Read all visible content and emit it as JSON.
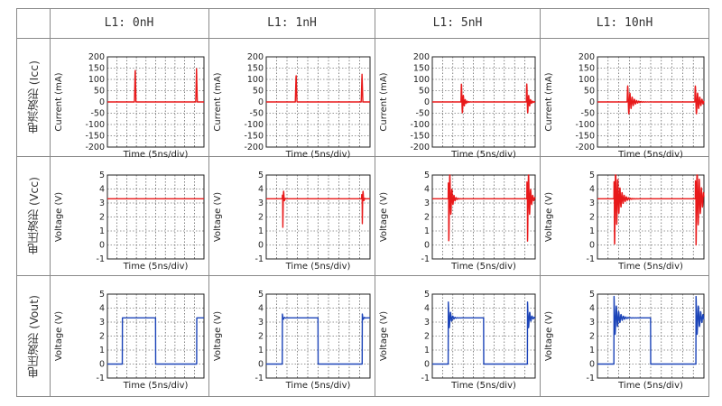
{
  "headers": [
    "L1: 0nH",
    "L1: 1nH",
    "L1: 5nH",
    "L1: 10nH"
  ],
  "row_labels": [
    "电流波形 (Icc)",
    "电压波形 (Vcc)",
    "电压波形 (Vout)"
  ],
  "colors": {
    "red": "#e8191a",
    "blue": "#1c44b8",
    "grid": "#333333"
  },
  "chart_data": [
    {
      "type": "line",
      "row": 0,
      "col": 0,
      "ylabel": "Current (mA)",
      "xlabel": "Time (5ns/div)",
      "ylim": [
        -200,
        200
      ],
      "yticks": [
        200,
        150,
        100,
        50,
        0,
        -50,
        -100,
        -150,
        -200
      ],
      "series": [
        {
          "kind": "icc",
          "peak": 150,
          "ring": 0,
          "color": "red"
        }
      ]
    },
    {
      "type": "line",
      "row": 0,
      "col": 1,
      "ylabel": "Current (mA)",
      "xlabel": "Time (5ns/div)",
      "ylim": [
        -200,
        200
      ],
      "yticks": [
        200,
        150,
        100,
        50,
        0,
        -50,
        -100,
        -150,
        -200
      ],
      "series": [
        {
          "kind": "icc",
          "peak": 125,
          "ring": 0,
          "color": "red"
        }
      ]
    },
    {
      "type": "line",
      "row": 0,
      "col": 2,
      "ylabel": "Current (mA)",
      "xlabel": "Time (5ns/div)",
      "ylim": [
        -200,
        200
      ],
      "yticks": [
        200,
        150,
        100,
        50,
        0,
        -50,
        -100,
        -150,
        -200
      ],
      "series": [
        {
          "kind": "icc",
          "peak": 85,
          "ring": 1,
          "color": "red"
        }
      ]
    },
    {
      "type": "line",
      "row": 0,
      "col": 3,
      "ylabel": "Current (mA)",
      "xlabel": "Time (5ns/div)",
      "ylim": [
        -200,
        200
      ],
      "yticks": [
        200,
        150,
        100,
        50,
        0,
        -50,
        -100,
        -150,
        -200
      ],
      "series": [
        {
          "kind": "icc",
          "peak": 70,
          "ring": 2,
          "color": "red"
        }
      ]
    },
    {
      "type": "line",
      "row": 1,
      "col": 0,
      "ylabel": "Voltage (V)",
      "xlabel": "Time (5ns/div)",
      "ylim": [
        -1,
        5
      ],
      "yticks": [
        5,
        4,
        3,
        2,
        1,
        0,
        -1
      ],
      "series": [
        {
          "kind": "vcc",
          "level": 3.3,
          "amp": 0,
          "ring": 0,
          "color": "red"
        }
      ]
    },
    {
      "type": "line",
      "row": 1,
      "col": 1,
      "ylabel": "Voltage (V)",
      "xlabel": "Time (5ns/div)",
      "ylim": [
        -1,
        5
      ],
      "yticks": [
        5,
        4,
        3,
        2,
        1,
        0,
        -1
      ],
      "series": [
        {
          "kind": "vcc",
          "level": 3.3,
          "amp": 2.0,
          "ring": 0,
          "color": "red"
        }
      ]
    },
    {
      "type": "line",
      "row": 1,
      "col": 2,
      "ylabel": "Voltage (V)",
      "xlabel": "Time (5ns/div)",
      "ylim": [
        -1,
        5
      ],
      "yticks": [
        5,
        4,
        3,
        2,
        1,
        0,
        -1
      ],
      "series": [
        {
          "kind": "vcc",
          "level": 3.3,
          "amp": 3.0,
          "ring": 1,
          "color": "red"
        }
      ]
    },
    {
      "type": "line",
      "row": 1,
      "col": 3,
      "ylabel": "Voltage (V)",
      "xlabel": "Time (5ns/div)",
      "ylim": [
        -1,
        5
      ],
      "yticks": [
        5,
        4,
        3,
        2,
        1,
        0,
        -1
      ],
      "series": [
        {
          "kind": "vcc",
          "level": 3.3,
          "amp": 3.2,
          "ring": 2,
          "color": "red"
        }
      ]
    },
    {
      "type": "line",
      "row": 2,
      "col": 0,
      "ylabel": "Voltage (V)",
      "xlabel": "Time (5ns/div)",
      "ylim": [
        -1,
        5
      ],
      "yticks": [
        5,
        4,
        3,
        2,
        1,
        0,
        -1
      ],
      "series": [
        {
          "kind": "vout",
          "high": 3.3,
          "over": 0,
          "ring": 0,
          "color": "blue"
        }
      ]
    },
    {
      "type": "line",
      "row": 2,
      "col": 1,
      "ylabel": "Voltage (V)",
      "xlabel": "Time (5ns/div)",
      "ylim": [
        -1,
        5
      ],
      "yticks": [
        5,
        4,
        3,
        2,
        1,
        0,
        -1
      ],
      "series": [
        {
          "kind": "vout",
          "high": 3.3,
          "over": 0.3,
          "ring": 0,
          "color": "blue"
        }
      ]
    },
    {
      "type": "line",
      "row": 2,
      "col": 2,
      "ylabel": "Voltage (V)",
      "xlabel": "Time (5ns/div)",
      "ylim": [
        -1,
        5
      ],
      "yticks": [
        5,
        4,
        3,
        2,
        1,
        0,
        -1
      ],
      "series": [
        {
          "kind": "vout",
          "high": 3.3,
          "over": 1.2,
          "ring": 1,
          "color": "blue"
        }
      ]
    },
    {
      "type": "line",
      "row": 2,
      "col": 3,
      "ylabel": "Voltage (V)",
      "xlabel": "Time (5ns/div)",
      "ylim": [
        -1,
        5
      ],
      "yticks": [
        5,
        4,
        3,
        2,
        1,
        0,
        -1
      ],
      "series": [
        {
          "kind": "vout",
          "high": 3.3,
          "over": 1.6,
          "ring": 2,
          "color": "blue"
        }
      ]
    }
  ]
}
